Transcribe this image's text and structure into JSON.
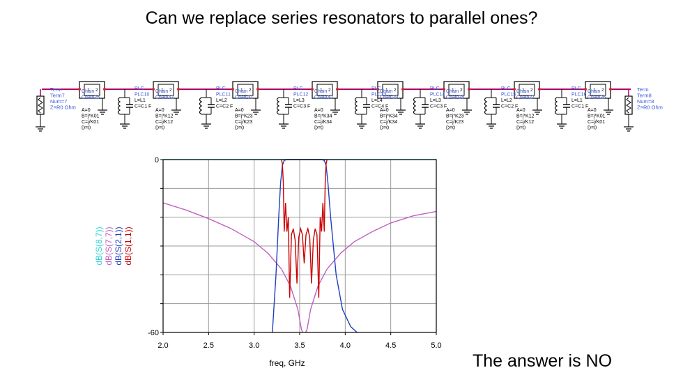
{
  "slide": {
    "title": "Can we replace series resonators to parallel ones?",
    "answer": "The answer is NO"
  },
  "schematic": {
    "wire_color": "#b0006a",
    "label_color": "#3a57d8",
    "term_left": {
      "title": "Term",
      "name": "Term7",
      "num": "Num=7",
      "z": "Z=R0 Ohm"
    },
    "term_right": {
      "title": "Term",
      "name": "Term8",
      "num": "Num=8",
      "z": "Z=R0 Ohm"
    },
    "chains": [
      {
        "title": "Chain",
        "name": "Chain25",
        "A": "A=0",
        "B": "B=j*K01",
        "C": "C=j/K01",
        "D": "D=0"
      },
      {
        "title": "Chain",
        "name": "Chain32",
        "A": "A=0",
        "B": "B=j*K12",
        "C": "C=j/K12",
        "D": "D=0"
      },
      {
        "title": "Chain",
        "name": "Chain31",
        "A": "A=0",
        "B": "B=j*K23",
        "C": "C=j/K23",
        "D": "D=0"
      },
      {
        "title": "Chain",
        "name": "Chain30",
        "A": "A=0",
        "B": "B=j*K34",
        "C": "C=j/K34",
        "D": "D=0"
      },
      {
        "title": "Chain",
        "name": "Chain29",
        "A": "A=0",
        "B": "B=j*K34",
        "C": "C=j/K34",
        "D": "D=0"
      },
      {
        "title": "Chain",
        "name": "Chain28",
        "A": "A=0",
        "B": "B=j*K23",
        "C": "C=j/K23",
        "D": "D=0"
      },
      {
        "title": "Chain",
        "name": "Chain27",
        "A": "A=0",
        "B": "B=j*K12",
        "C": "C=j/K12",
        "D": "D=0"
      },
      {
        "title": "Chain",
        "name": "Chain26",
        "A": "A=0",
        "B": "B=j*K01",
        "C": "C=j/K01",
        "D": "D=0"
      }
    ],
    "resonators": [
      {
        "title": "PLC",
        "name": "PLC10",
        "L": "L=L1",
        "C": "C=C1 F"
      },
      {
        "title": "PLC",
        "name": "PLC11",
        "L": "L=L2",
        "C": "C=C2 F"
      },
      {
        "title": "PLC",
        "name": "PLC12",
        "L": "L=L3",
        "C": "C=C3 F"
      },
      {
        "title": "PLC",
        "name": "PLC13",
        "L": "L=L4",
        "C": "C=C4 F"
      },
      {
        "title": "PLC",
        "name": "PLC14",
        "L": "L=L3",
        "C": "C=C3 F"
      },
      {
        "title": "PLC",
        "name": "PLC15",
        "L": "L=L2",
        "C": "C=C2 F"
      },
      {
        "title": "PLC",
        "name": "PLC16",
        "L": "L=L1",
        "C": "C=C1 F"
      }
    ],
    "port_labels": [
      "1",
      "2"
    ]
  },
  "chart_data": {
    "type": "line",
    "xlabel": "freq, GHz",
    "x_ticks": [
      "2.0",
      "2.5",
      "3.0",
      "3.5",
      "4.0",
      "4.5",
      "5.0"
    ],
    "y_ticks": [
      "0",
      "-60"
    ],
    "xlim": [
      2.0,
      5.0
    ],
    "ylim": [
      -60,
      0
    ],
    "y_gridlines": [
      0,
      -10,
      -20,
      -30,
      -40,
      -50,
      -60
    ],
    "series": [
      {
        "name": "dB(S(8,7))",
        "color": "#33d6d6",
        "points": [
          [
            2.0,
            0
          ],
          [
            5.0,
            0
          ]
        ]
      },
      {
        "name": "dB(S(7,7))",
        "color": "#c060c0",
        "points": [
          [
            2.0,
            -15
          ],
          [
            2.25,
            -17.5
          ],
          [
            2.5,
            -20.5
          ],
          [
            2.75,
            -24
          ],
          [
            3.0,
            -28.5
          ],
          [
            3.15,
            -32.5
          ],
          [
            3.3,
            -38
          ],
          [
            3.4,
            -44
          ],
          [
            3.48,
            -52
          ],
          [
            3.52,
            -59
          ],
          [
            3.55,
            -61
          ],
          [
            3.58,
            -59
          ],
          [
            3.62,
            -52
          ],
          [
            3.7,
            -44
          ],
          [
            3.8,
            -38
          ],
          [
            3.95,
            -32.5
          ],
          [
            4.1,
            -28.5
          ],
          [
            4.3,
            -25
          ],
          [
            4.5,
            -22
          ],
          [
            4.75,
            -19.5
          ],
          [
            5.0,
            -18
          ]
        ]
      },
      {
        "name": "dB(S(2,1))",
        "color": "#1f3fbf",
        "points": [
          [
            3.2,
            -60
          ],
          [
            3.24,
            -40
          ],
          [
            3.27,
            -20
          ],
          [
            3.29,
            -8
          ],
          [
            3.31,
            -2
          ],
          [
            3.33,
            -0.3
          ],
          [
            3.36,
            0
          ],
          [
            3.74,
            0
          ],
          [
            3.77,
            -0.3
          ],
          [
            3.79,
            -2
          ],
          [
            3.81,
            -8
          ],
          [
            3.84,
            -20
          ],
          [
            3.9,
            -40
          ],
          [
            3.97,
            -52
          ],
          [
            4.06,
            -58
          ],
          [
            4.2,
            -62
          ]
        ]
      },
      {
        "name": "dB(S(1,1))",
        "color": "#cc0000",
        "points": [
          [
            3.3,
            0
          ],
          [
            3.31,
            -1.5
          ],
          [
            3.32,
            -8
          ],
          [
            3.33,
            -25
          ],
          [
            3.345,
            -15
          ],
          [
            3.36,
            -25
          ],
          [
            3.375,
            -20
          ],
          [
            3.39,
            -48
          ],
          [
            3.41,
            -26
          ],
          [
            3.43,
            -24
          ],
          [
            3.45,
            -28
          ],
          [
            3.47,
            -43
          ],
          [
            3.49,
            -27
          ],
          [
            3.51,
            -24
          ],
          [
            3.53,
            -26
          ],
          [
            3.55,
            -36
          ],
          [
            3.57,
            -26
          ],
          [
            3.59,
            -24
          ],
          [
            3.61,
            -27
          ],
          [
            3.63,
            -43
          ],
          [
            3.65,
            -28
          ],
          [
            3.67,
            -24
          ],
          [
            3.69,
            -26
          ],
          [
            3.71,
            -48
          ],
          [
            3.725,
            -20
          ],
          [
            3.74,
            -25
          ],
          [
            3.755,
            -15
          ],
          [
            3.77,
            -25
          ],
          [
            3.78,
            -8
          ],
          [
            3.79,
            -1.5
          ],
          [
            3.8,
            0
          ]
        ]
      }
    ]
  }
}
